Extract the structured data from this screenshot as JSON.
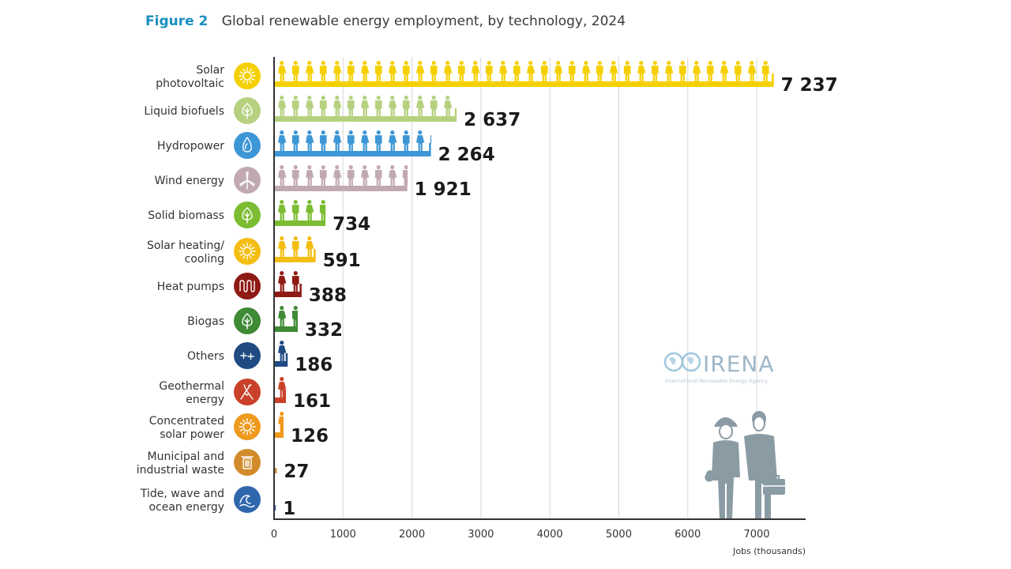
{
  "header": {
    "figure_label": "Figure 2",
    "title": "Global renewable energy employment, by technology, 2024"
  },
  "chart_data": {
    "type": "bar",
    "style": "pictogram horizontal bar",
    "title": "Global renewable energy employment, by technology, 2024",
    "xlabel": "Jobs (thousands)",
    "ylabel": "",
    "xlim": [
      0,
      7700
    ],
    "x_ticks": [
      0,
      1000,
      2000,
      3000,
      4000,
      5000,
      6000,
      7000
    ],
    "x_tick_labels": [
      "0",
      "1000",
      "2000",
      "3000",
      "4000",
      "5000",
      "6000",
      "7000"
    ],
    "grid": "vertical",
    "units_per_figure": 200,
    "categories": [
      {
        "label": [
          "Solar",
          "photovoltaic"
        ],
        "value": 7237,
        "value_label": "7 237",
        "color": "#f5d000",
        "icon": "sun-icon"
      },
      {
        "label": [
          "Liquid biofuels"
        ],
        "value": 2637,
        "value_label": "2 637",
        "color": "#b5d17f",
        "icon": "leaf-icon"
      },
      {
        "label": [
          "Hydropower"
        ],
        "value": 2264,
        "value_label": "2 264",
        "color": "#3d96d6",
        "icon": "water-drop-icon"
      },
      {
        "label": [
          "Wind energy"
        ],
        "value": 1921,
        "value_label": "1 921",
        "color": "#c1a9b3",
        "icon": "wind-turbine-icon"
      },
      {
        "label": [
          "Solid biomass"
        ],
        "value": 734,
        "value_label": "734",
        "color": "#7cbc32",
        "icon": "leaf-icon"
      },
      {
        "label": [
          "Solar heating/",
          "cooling"
        ],
        "value": 591,
        "value_label": "591",
        "color": "#f4bd11",
        "icon": "sun-icon"
      },
      {
        "label": [
          "Heat pumps"
        ],
        "value": 388,
        "value_label": "388",
        "color": "#8f1a14",
        "icon": "heat-coil-icon"
      },
      {
        "label": [
          "Biogas"
        ],
        "value": 332,
        "value_label": "332",
        "color": "#3f8a35",
        "icon": "leaf-icon"
      },
      {
        "label": [
          "Others"
        ],
        "value": 186,
        "value_label": "186",
        "color": "#1f4a82",
        "icon": "plus-plus-icon"
      },
      {
        "label": [
          "Geothermal",
          "energy"
        ],
        "value": 161,
        "value_label": "161",
        "color": "#c9412b",
        "icon": "volcano-icon"
      },
      {
        "label": [
          "Concentrated",
          "solar power"
        ],
        "value": 126,
        "value_label": "126",
        "color": "#ef9a1c",
        "icon": "sun-icon"
      },
      {
        "label": [
          "Municipal and",
          "industrial waste"
        ],
        "value": 27,
        "value_label": "27",
        "color": "#d18b2a",
        "icon": "trash-bin-icon"
      },
      {
        "label": [
          "Tide, wave and",
          "ocean energy"
        ],
        "value": 1,
        "value_label": "1",
        "color": "#2f67ad",
        "icon": "wave-icon"
      }
    ]
  },
  "logo": {
    "name": "IRENA",
    "subtitle": "International Renewable Energy Agency"
  },
  "colors": {
    "axis": "#333333",
    "grid": "#d8d8d8",
    "figure_label": "#1a8fc0",
    "workers_illustration": "#8a9ba4"
  }
}
